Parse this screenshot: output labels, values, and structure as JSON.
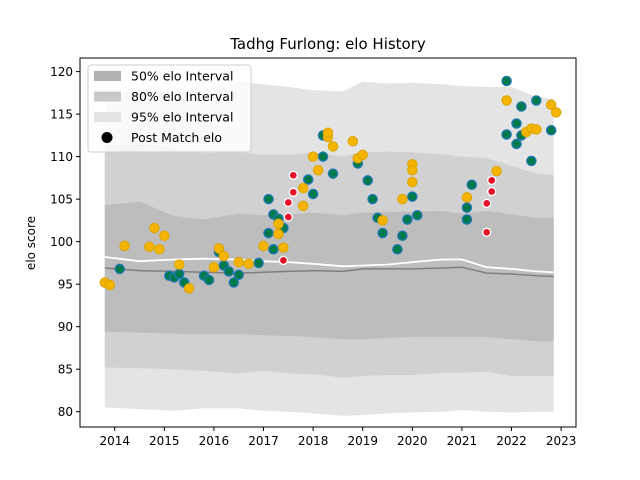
{
  "chart_data": {
    "type": "scatter",
    "title": "Tadhg Furlong: elo History",
    "xlabel": "",
    "ylabel": "elo score",
    "xlim": [
      2013.3,
      2023.3
    ],
    "ylim": [
      78.2,
      121.6
    ],
    "x_ticks": [
      2014,
      2015,
      2016,
      2017,
      2018,
      2019,
      2020,
      2021,
      2022,
      2023
    ],
    "x_tick_labels": [
      "2014",
      "2015",
      "2016",
      "2017",
      "2018",
      "2019",
      "2020",
      "2021",
      "2022",
      "2023"
    ],
    "y_ticks": [
      80,
      85,
      90,
      95,
      100,
      105,
      110,
      115,
      120
    ],
    "y_tick_labels": [
      "80",
      "85",
      "90",
      "95",
      "100",
      "105",
      "110",
      "115",
      "120"
    ],
    "grid": false,
    "legend_position": "top-left",
    "legend": [
      {
        "label": "50% elo Interval",
        "swatch": "#b0b0b0",
        "kind": "patch"
      },
      {
        "label": "80% elo Interval",
        "swatch": "#c9c9c9",
        "kind": "patch"
      },
      {
        "label": "95% elo Interval",
        "swatch": "#e3e3e3",
        "kind": "patch"
      },
      {
        "label": "Post Match elo",
        "swatch": "#000000",
        "kind": "marker"
      }
    ],
    "colors": {
      "band50": "#bdbdbd",
      "band80": "#d1d1d1",
      "band95": "#e4e4e4",
      "median_line": "#7f7f7f",
      "mean_line": "#ffffff",
      "win": "#007a4d",
      "loss": "#e8102a",
      "draw": "#f5b400",
      "edge_win": "#1f77b4",
      "edge_loss": "#ffffff",
      "edge_draw": "#e0a800"
    },
    "bands": {
      "x": [
        2013.8,
        2014.5,
        2015.2,
        2015.8,
        2016.5,
        2017.0,
        2017.5,
        2018.0,
        2018.6,
        2019.0,
        2019.5,
        2020.0,
        2020.6,
        2021.0,
        2021.5,
        2022.0,
        2022.5,
        2022.85
      ],
      "p50_low": [
        89.4,
        89.3,
        89.2,
        89.1,
        89.1,
        89.0,
        88.9,
        88.8,
        88.5,
        88.5,
        88.7,
        88.8,
        88.8,
        88.8,
        88.8,
        88.5,
        88.3,
        88.3
      ],
      "p50_high": [
        104.3,
        104.7,
        103.0,
        102.6,
        103.3,
        103.1,
        103.2,
        103.4,
        103.1,
        103.4,
        103.5,
        103.5,
        103.6,
        103.3,
        103.6,
        103.2,
        102.8,
        102.8
      ],
      "p80_low": [
        85.2,
        85.1,
        85.0,
        84.8,
        84.5,
        84.8,
        84.5,
        84.4,
        84.0,
        84.2,
        84.3,
        84.3,
        84.6,
        84.6,
        84.7,
        84.2,
        84.2,
        84.2
      ],
      "p80_high": [
        111.3,
        111.5,
        111.0,
        110.4,
        110.5,
        110.2,
        110.2,
        110.5,
        110.0,
        110.5,
        110.6,
        110.5,
        110.3,
        110.0,
        109.8,
        108.9,
        108.0,
        107.8
      ],
      "p95_low": [
        80.5,
        80.3,
        80.1,
        80.4,
        80.4,
        80.1,
        80.0,
        79.8,
        79.5,
        79.6,
        79.8,
        79.9,
        80.0,
        80.2,
        80.0,
        79.9,
        80.0,
        80.0
      ],
      "p95_high": [
        117.3,
        117.7,
        117.5,
        118.0,
        118.8,
        118.5,
        118.2,
        117.8,
        117.7,
        118.8,
        118.6,
        118.7,
        118.5,
        118.3,
        118.2,
        118.2,
        117.0,
        116.8
      ],
      "median": [
        96.9,
        96.6,
        96.5,
        96.4,
        96.3,
        96.4,
        96.5,
        96.6,
        96.5,
        96.8,
        96.8,
        96.8,
        96.9,
        97.0,
        96.3,
        96.2,
        96.0,
        95.9
      ],
      "mean": [
        98.2,
        97.7,
        97.9,
        98.0,
        97.9,
        97.7,
        97.6,
        97.4,
        97.1,
        97.2,
        97.3,
        97.6,
        97.9,
        97.9,
        97.0,
        96.8,
        96.5,
        96.4
      ]
    },
    "series": [
      {
        "result": "win",
        "points": [
          [
            2014.1,
            96.8
          ],
          [
            2015.1,
            96.0
          ],
          [
            2015.2,
            95.8
          ],
          [
            2015.3,
            96.2
          ],
          [
            2015.4,
            95.2
          ],
          [
            2015.8,
            96.0
          ],
          [
            2015.9,
            95.5
          ],
          [
            2016.1,
            98.8
          ],
          [
            2016.2,
            97.2
          ],
          [
            2016.3,
            96.5
          ],
          [
            2016.4,
            95.2
          ],
          [
            2016.5,
            96.1
          ],
          [
            2016.9,
            97.5
          ],
          [
            2017.1,
            101.0
          ],
          [
            2017.1,
            105.0
          ],
          [
            2017.2,
            103.2
          ],
          [
            2017.2,
            99.1
          ],
          [
            2017.3,
            102.7
          ],
          [
            2017.4,
            101.6
          ],
          [
            2017.9,
            107.3
          ],
          [
            2018.0,
            105.6
          ],
          [
            2018.2,
            110.0
          ],
          [
            2018.2,
            112.5
          ],
          [
            2018.4,
            108.0
          ],
          [
            2018.9,
            109.2
          ],
          [
            2019.1,
            107.2
          ],
          [
            2019.2,
            105.0
          ],
          [
            2019.3,
            102.8
          ],
          [
            2019.4,
            101.0
          ],
          [
            2019.7,
            99.1
          ],
          [
            2019.8,
            100.7
          ],
          [
            2019.9,
            102.6
          ],
          [
            2020.0,
            105.3
          ],
          [
            2020.1,
            103.1
          ],
          [
            2021.1,
            104.0
          ],
          [
            2021.1,
            102.6
          ],
          [
            2021.2,
            106.7
          ],
          [
            2021.9,
            118.9
          ],
          [
            2021.9,
            112.6
          ],
          [
            2022.1,
            113.9
          ],
          [
            2022.1,
            111.5
          ],
          [
            2022.2,
            115.9
          ],
          [
            2022.2,
            112.5
          ],
          [
            2022.4,
            109.5
          ],
          [
            2022.5,
            116.6
          ],
          [
            2022.8,
            113.1
          ]
        ]
      },
      {
        "result": "draw",
        "points": [
          [
            2013.8,
            95.2
          ],
          [
            2013.9,
            94.9
          ],
          [
            2014.2,
            99.5
          ],
          [
            2014.7,
            99.4
          ],
          [
            2014.8,
            101.6
          ],
          [
            2014.9,
            99.1
          ],
          [
            2015.0,
            100.7
          ],
          [
            2015.3,
            97.3
          ],
          [
            2015.5,
            94.5
          ],
          [
            2016.0,
            97.0
          ],
          [
            2016.1,
            99.2
          ],
          [
            2016.2,
            98.3
          ],
          [
            2016.5,
            97.6
          ],
          [
            2016.7,
            97.4
          ],
          [
            2017.0,
            99.5
          ],
          [
            2017.3,
            102.1
          ],
          [
            2017.3,
            100.9
          ],
          [
            2017.4,
            99.3
          ],
          [
            2017.8,
            106.3
          ],
          [
            2017.8,
            104.2
          ],
          [
            2018.0,
            110.0
          ],
          [
            2018.1,
            108.4
          ],
          [
            2018.3,
            112.3
          ],
          [
            2018.3,
            112.8
          ],
          [
            2018.4,
            111.2
          ],
          [
            2018.8,
            111.8
          ],
          [
            2018.9,
            109.8
          ],
          [
            2019.0,
            110.2
          ],
          [
            2019.4,
            102.5
          ],
          [
            2019.8,
            105.0
          ],
          [
            2020.0,
            107.0
          ],
          [
            2020.0,
            109.1
          ],
          [
            2020.0,
            108.4
          ],
          [
            2021.1,
            105.2
          ],
          [
            2021.7,
            108.3
          ],
          [
            2021.9,
            116.6
          ],
          [
            2022.3,
            112.9
          ],
          [
            2022.4,
            113.3
          ],
          [
            2022.5,
            113.2
          ],
          [
            2022.8,
            116.1
          ],
          [
            2022.9,
            115.2
          ]
        ]
      },
      {
        "result": "loss",
        "points": [
          [
            2017.4,
            97.8
          ],
          [
            2017.5,
            102.9
          ],
          [
            2017.5,
            104.6
          ],
          [
            2017.6,
            105.8
          ],
          [
            2017.6,
            107.8
          ],
          [
            2021.5,
            101.1
          ],
          [
            2021.5,
            104.5
          ],
          [
            2021.6,
            105.9
          ],
          [
            2021.6,
            107.2
          ]
        ]
      }
    ]
  }
}
